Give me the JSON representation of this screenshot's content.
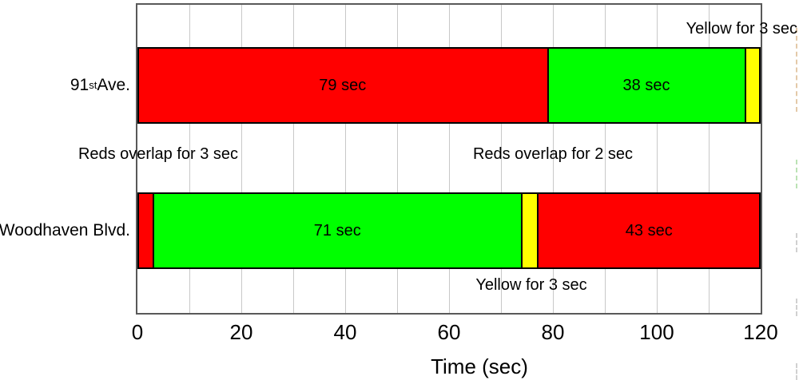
{
  "chart_data": {
    "type": "bar",
    "orientation": "horizontal",
    "stacked": true,
    "title": "",
    "xlabel": "Time (sec)",
    "ylabel": "",
    "xlim": [
      0,
      120
    ],
    "xticks": [
      0,
      20,
      40,
      60,
      80,
      100,
      120
    ],
    "gridline_step": 10,
    "grid": true,
    "legend": false,
    "categories": [
      "91st Ave.",
      "Woodhaven Blvd."
    ],
    "colors": {
      "red": "#ff0000",
      "green": "#00ff00",
      "yellow": "#ffff00"
    },
    "rows": [
      {
        "category": "91st Ave.",
        "category_parts": [
          {
            "text": "91"
          },
          {
            "text": "st",
            "sup": true
          },
          {
            "text": " Ave."
          }
        ],
        "segments": [
          {
            "phase": "red",
            "start": 0,
            "duration": 79,
            "label": "79 sec"
          },
          {
            "phase": "green",
            "start": 79,
            "duration": 38,
            "label": "38 sec"
          },
          {
            "phase": "yellow",
            "start": 117,
            "duration": 3,
            "label": ""
          }
        ]
      },
      {
        "category": "Woodhaven Blvd.",
        "category_parts": [
          {
            "text": "Woodhaven Blvd."
          }
        ],
        "segments": [
          {
            "phase": "red",
            "start": 0,
            "duration": 3,
            "label": ""
          },
          {
            "phase": "green",
            "start": 3,
            "duration": 71,
            "label": "71 sec"
          },
          {
            "phase": "yellow",
            "start": 74,
            "duration": 3,
            "label": ""
          },
          {
            "phase": "red",
            "start": 77,
            "duration": 43,
            "label": "43 sec"
          }
        ]
      }
    ],
    "annotations": [
      {
        "id": "yellow-top",
        "text": "Yellow for 3 sec"
      },
      {
        "id": "reds-overlap-start",
        "text": "Reds overlap for 3 sec"
      },
      {
        "id": "reds-overlap-end",
        "text": "Reds overlap for 2 sec"
      },
      {
        "id": "yellow-bottom",
        "text": "Yellow for 3 sec"
      }
    ]
  }
}
